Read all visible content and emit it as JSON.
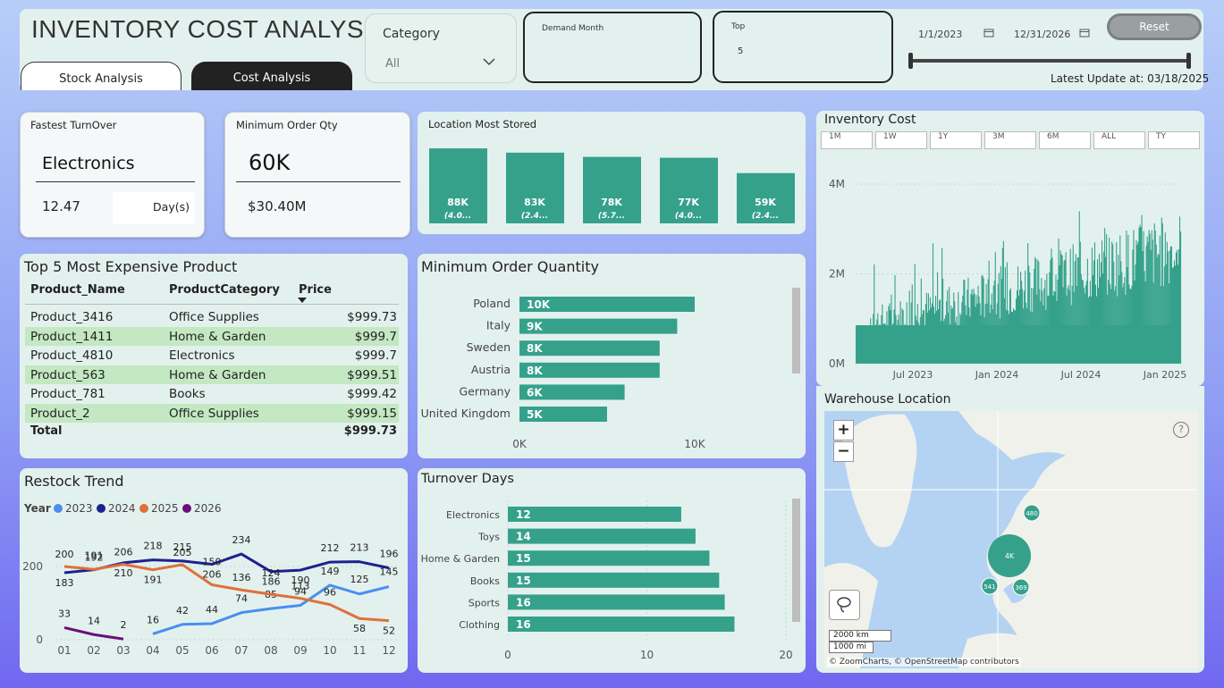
{
  "header": {
    "title": "INVENTORY COST ANALYSIS",
    "tabs": [
      {
        "label": "Stock Analysis"
      },
      {
        "label": "Cost Analysis"
      }
    ],
    "category_label": "Category",
    "category_value": "All",
    "demand_month_label": "Demand Month",
    "top_label": "Top",
    "top_value": "5",
    "date_start": "1/1/2023",
    "date_end": "12/31/2026",
    "reset_label": "Reset",
    "latest_update": "Latest Update at: 03/18/2025"
  },
  "kpi": {
    "fastest_turnover_label": "Fastest TurnOver",
    "fastest_turnover_value": "Electronics",
    "turnover_days": "12.47",
    "days_unit": "Day(s)",
    "min_order_label": "Minimum Order Qty",
    "min_order_value": "60K",
    "min_order_cost": "$30.40M"
  },
  "location": {
    "title": "Location Most Stored",
    "chart_data": {
      "type": "bar",
      "values": [
        88,
        83,
        78,
        77,
        59
      ],
      "labels": [
        "88K",
        "83K",
        "78K",
        "77K",
        "59K"
      ],
      "sublabels": [
        "(4.0...",
        "(2.4...",
        "(5.7...",
        "(4.0...",
        "(2.4..."
      ],
      "ylim": [
        0,
        100
      ]
    }
  },
  "top5": {
    "title": "Top 5 Most Expensive Product",
    "headers": [
      "Product_Name",
      "ProductCategory",
      "Price"
    ],
    "rows": [
      [
        "Product_3416",
        "Office Supplies",
        "$999.73"
      ],
      [
        "Product_1411",
        "Home & Garden",
        "$999.7"
      ],
      [
        "Product_4810",
        "Electronics",
        "$999.7"
      ],
      [
        "Product_563",
        "Home & Garden",
        "$999.51"
      ],
      [
        "Product_781",
        "Books",
        "$999.42"
      ],
      [
        "Product_2",
        "Office Supplies",
        "$999.15"
      ]
    ],
    "total_label": "Total",
    "total_value": "$999.73"
  },
  "min_order_chart": {
    "title": "Minimum Order Quantity",
    "chart_data": {
      "type": "bar",
      "orientation": "horizontal",
      "categories": [
        "Poland",
        "Italy",
        "Sweden",
        "Austria",
        "Germany",
        "United Kingdom"
      ],
      "values": [
        10,
        9,
        8,
        8,
        6,
        5
      ],
      "value_labels": [
        "10K",
        "9K",
        "8K",
        "8K",
        "6K",
        "5K"
      ],
      "xlim": [
        0,
        12
      ],
      "xticks": [
        "0K",
        "10K"
      ]
    }
  },
  "inventory_cost": {
    "title": "Inventory Cost",
    "range_buttons": [
      "1M",
      "1W",
      "1Y",
      "3M",
      "6M",
      "ALL",
      "TY"
    ],
    "chart_data": {
      "type": "bar",
      "yticks": [
        "4M",
        "2M",
        "0M"
      ],
      "xticks": [
        "Jul 2023",
        "Jan 2024",
        "Jul 2024",
        "Jan 2025"
      ],
      "ylim": [
        0,
        4.5
      ],
      "color": "#35a18b"
    }
  },
  "warehouse": {
    "title": "Warehouse Location",
    "zoom_in": "+",
    "zoom_out": "−",
    "help": "?",
    "scale_km": "2000 km",
    "scale_mi": "1000 mi",
    "attribution": "© ZoomCharts, © OpenStreetMap contributors",
    "clusters": [
      {
        "label": "480"
      },
      {
        "label": "4K"
      },
      {
        "label": "541"
      },
      {
        "label": "369"
      }
    ]
  },
  "restock": {
    "title": "Restock Trend",
    "legend_title": "Year",
    "chart_data": {
      "type": "line",
      "x": [
        "01",
        "02",
        "03",
        "04",
        "05",
        "06",
        "07",
        "08",
        "09",
        "10",
        "11",
        "12"
      ],
      "yticks": [
        "200",
        "0"
      ],
      "ylim": [
        0,
        260
      ],
      "series": [
        {
          "name": "2023",
          "color": "#4a8ef0",
          "values": [
            null,
            null,
            null,
            16,
            42,
            44,
            74,
            85,
            94,
            149,
            125,
            145
          ]
        },
        {
          "name": "2024",
          "color": "#1c2190",
          "values": [
            183,
            191,
            210,
            218,
            215,
            206,
            234,
            186,
            190,
            212,
            213,
            196
          ]
        },
        {
          "name": "2025",
          "color": "#e0703a",
          "values": [
            200,
            192,
            206,
            191,
            205,
            150,
            136,
            124,
            113,
            96,
            58,
            52
          ]
        },
        {
          "name": "2026",
          "color": "#6a0f7a",
          "values": [
            33,
            14,
            2,
            null,
            null,
            null,
            null,
            null,
            null,
            null,
            null,
            null
          ]
        }
      ]
    }
  },
  "turnover": {
    "title": "Turnover Days",
    "chart_data": {
      "type": "bar",
      "orientation": "horizontal",
      "categories": [
        "Electronics",
        "Toys",
        "Home & Garden",
        "Books",
        "Sports",
        "Clothing"
      ],
      "values": [
        12.47,
        13.5,
        14.5,
        15.2,
        15.6,
        16.3
      ],
      "value_labels": [
        "12",
        "14",
        "15",
        "15",
        "16",
        "16"
      ],
      "xlim": [
        0,
        20
      ],
      "xticks": [
        "0",
        "10",
        "20"
      ]
    }
  }
}
